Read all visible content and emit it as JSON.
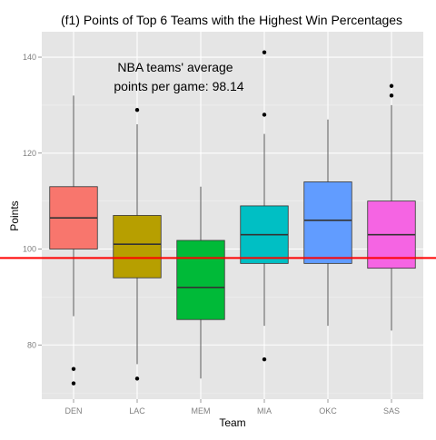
{
  "chart_data": {
    "type": "boxplot",
    "title": "(f1) Points of Top 6 Teams with the Highest Win Percentages",
    "xlabel": "Team",
    "ylabel": "Points",
    "ylim": [
      68.7,
      145.3
    ],
    "yticks": [
      80,
      100,
      120,
      140
    ],
    "grid": true,
    "categories": [
      "DEN",
      "LAC",
      "MEM",
      "MIA",
      "OKC",
      "SAS"
    ],
    "series": [
      {
        "team": "DEN",
        "color": "#f8766d",
        "min": 86,
        "q1": 100,
        "median": 106.5,
        "q3": 113,
        "max": 132,
        "outliers": [
          75,
          72
        ]
      },
      {
        "team": "LAC",
        "color": "#b79f00",
        "min": 76,
        "q1": 94,
        "median": 101,
        "q3": 107,
        "max": 126,
        "outliers": [
          129,
          73
        ]
      },
      {
        "team": "MEM",
        "color": "#00ba38",
        "min": 73,
        "q1": 85.3,
        "median": 92,
        "q3": 101.8,
        "max": 113,
        "outliers": []
      },
      {
        "team": "MIA",
        "color": "#00bfc4",
        "min": 84,
        "q1": 97,
        "median": 103,
        "q3": 109,
        "max": 124,
        "outliers": [
          141,
          128,
          77
        ]
      },
      {
        "team": "OKC",
        "color": "#619cff",
        "min": 84,
        "q1": 97,
        "median": 106,
        "q3": 114,
        "max": 127,
        "outliers": []
      },
      {
        "team": "SAS",
        "color": "#f564e3",
        "min": 83,
        "q1": 96,
        "median": 103,
        "q3": 110,
        "max": 130,
        "outliers": [
          134,
          132
        ]
      }
    ],
    "reference_line": {
      "value": 98.14,
      "color": "#ff0000"
    },
    "annotation": {
      "line1": "NBA teams' average",
      "line2": "points per game: 98.14"
    }
  }
}
